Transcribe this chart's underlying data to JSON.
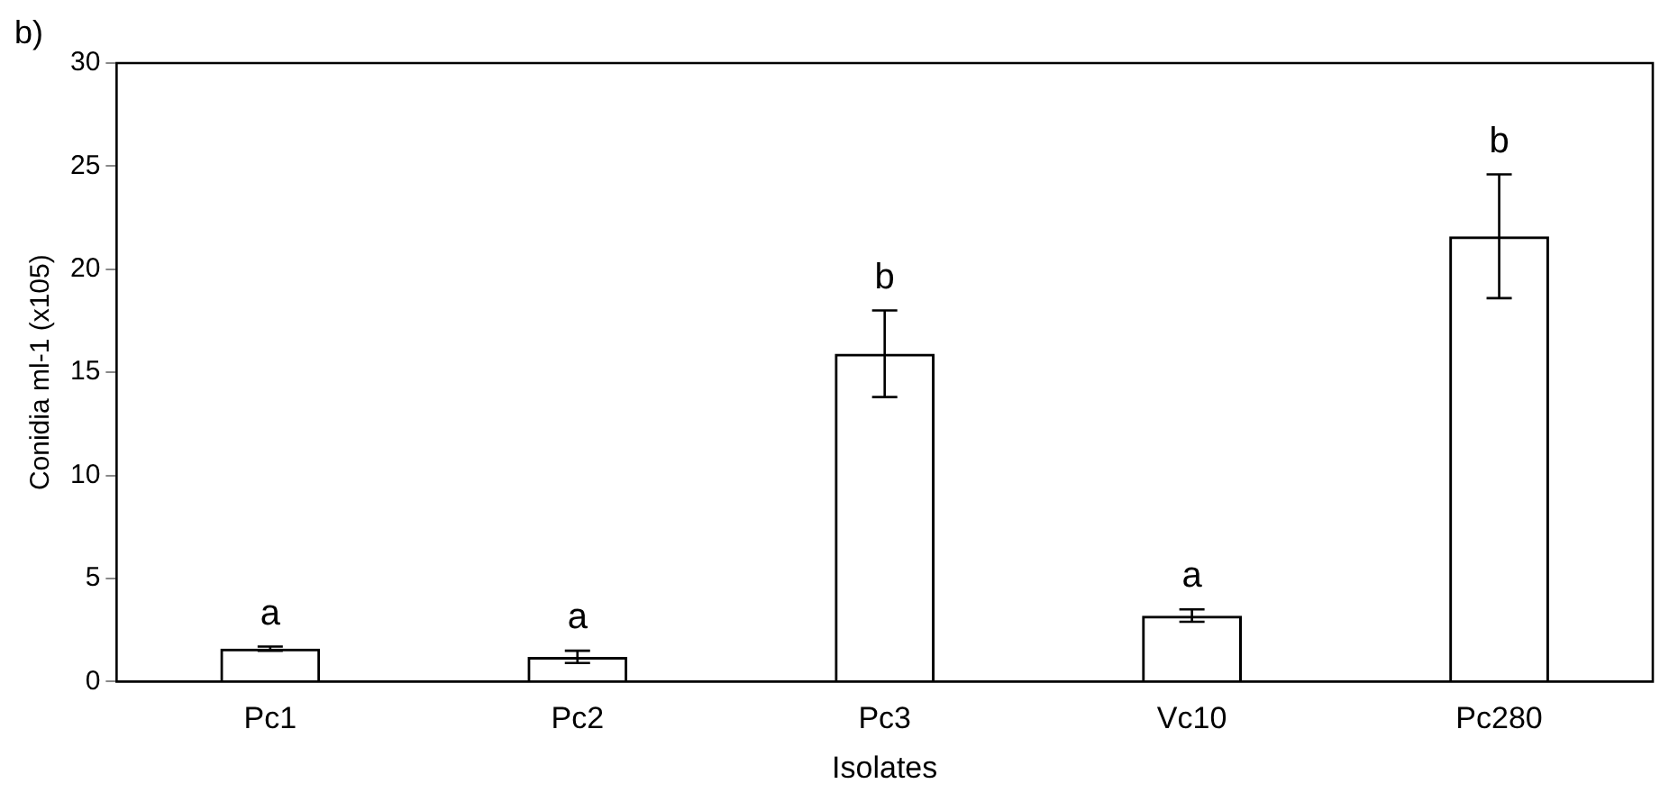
{
  "chart_data": {
    "type": "bar",
    "xlabel": "Isolates",
    "ylabel": "Conidia ml-1 (x105)",
    "categories": [
      "Pc1",
      "Pc2",
      "Pc3",
      "Vc10",
      "Pc280"
    ],
    "values": [
      1.6,
      1.2,
      15.9,
      3.2,
      21.6
    ],
    "color": "#000000",
    "errors": [
      0.1,
      0.3,
      2.1,
      0.3,
      3.0
    ],
    "ylim": [
      0,
      30
    ],
    "yticks": [
      0,
      5,
      10,
      15,
      20,
      25,
      30
    ],
    "grid": false,
    "legend": false,
    "annotations": [
      "b)",
      {
        "text": "a",
        "x": "Pc1",
        "y": 1.7
      },
      {
        "text": "a",
        "x": "Pc2",
        "y": 1.5
      },
      {
        "text": "b",
        "x": "Pc3",
        "y": 18.0
      },
      {
        "text": "a",
        "x": "Vc10",
        "y": 3.5
      },
      {
        "text": "b",
        "x": "Pc280",
        "y": 24.6
      }
    ]
  }
}
